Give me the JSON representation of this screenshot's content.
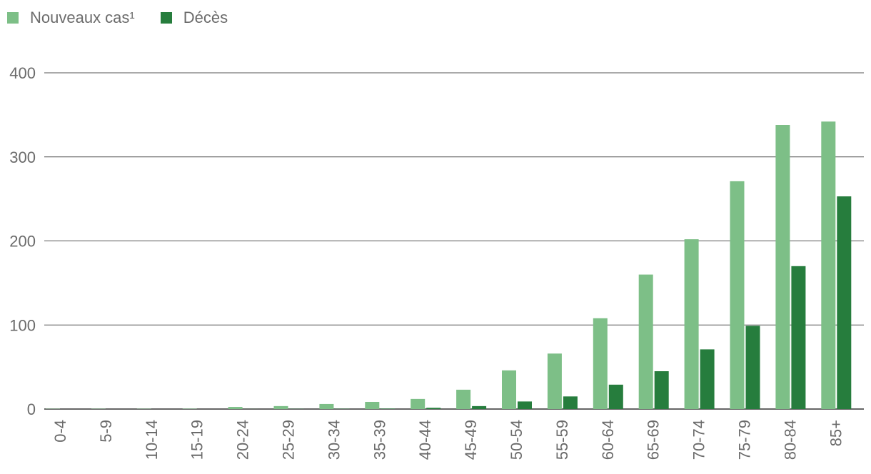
{
  "chart_data": {
    "type": "bar",
    "title": "",
    "xlabel": "",
    "ylabel": "",
    "ylim": [
      0,
      400
    ],
    "yticks": [
      0,
      100,
      200,
      300,
      400
    ],
    "grid": true,
    "legend_position": "top-left",
    "categories": [
      "0-4",
      "5-9",
      "10-14",
      "15-19",
      "20-24",
      "25-29",
      "30-34",
      "35-39",
      "40-44",
      "45-49",
      "50-54",
      "55-59",
      "60-64",
      "65-69",
      "70-74",
      "75-79",
      "80-84",
      "85+"
    ],
    "series": [
      {
        "name": "Nouveaux cas¹",
        "color": "#7dbf87",
        "values": [
          0.3,
          0.3,
          0.3,
          0.4,
          2.5,
          3.5,
          6,
          8.5,
          12,
          23,
          46,
          66,
          108,
          160,
          202,
          271,
          338,
          342
        ]
      },
      {
        "name": "Décès",
        "color": "#267d3d",
        "values": [
          0,
          0,
          0,
          0,
          0.1,
          0.2,
          0.3,
          0.5,
          1.5,
          3.5,
          9,
          15,
          29,
          45,
          71,
          99,
          170,
          253
        ]
      }
    ]
  }
}
